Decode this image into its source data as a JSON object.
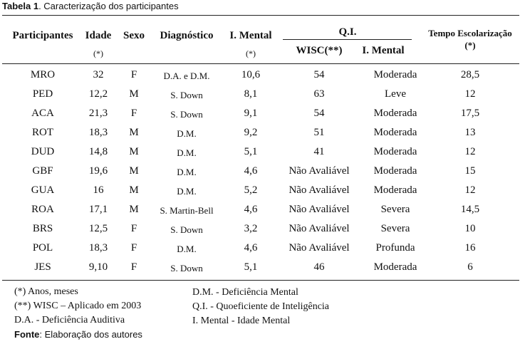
{
  "caption": {
    "label": "Tabela 1",
    "text": ". Caracterização dos participantes"
  },
  "table": {
    "headers": [
      {
        "label": "Participantes"
      },
      {
        "label": "Idade",
        "note": "(*)"
      },
      {
        "label": "Sexo"
      },
      {
        "label": "Diagnóstico"
      },
      {
        "label": "I. Mental",
        "note": "(*)"
      },
      {
        "label": "Q.I.",
        "subheaders": [
          "WISC(**)",
          "I. Mental"
        ]
      },
      {
        "label": "Tempo Escolarização (*)"
      }
    ],
    "rows": [
      [
        "MRO",
        "32",
        "F",
        "D.A. e D.M.",
        "10,6",
        "54",
        "Moderada",
        "28,5"
      ],
      [
        "PED",
        "12,2",
        "M",
        "S. Down",
        "8,1",
        "63",
        "Leve",
        "12"
      ],
      [
        "ACA",
        "21,3",
        "F",
        "S. Down",
        "9,1",
        "54",
        "Moderada",
        "17,5"
      ],
      [
        "ROT",
        "18,3",
        "M",
        "D.M.",
        "9,2",
        "51",
        "Moderada",
        "13"
      ],
      [
        "DUD",
        "14,8",
        "M",
        "D.M.",
        "5,1",
        "41",
        "Moderada",
        "12"
      ],
      [
        "GBF",
        "19,6",
        "M",
        "D.M.",
        "4,6",
        "Não Avaliável",
        "Moderada",
        "15"
      ],
      [
        "GUA",
        "16",
        "M",
        "D.M.",
        "5,2",
        "Não Avaliável",
        "Moderada",
        "12"
      ],
      [
        "ROA",
        "17,1",
        "M",
        "S. Martin-Bell",
        "4,6",
        "Não Avaliável",
        "Severa",
        "14,5"
      ],
      [
        "BRS",
        "12,5",
        "F",
        "S. Down",
        "3,2",
        "Não Avaliável",
        "Severa",
        "10"
      ],
      [
        "POL",
        "18,3",
        "F",
        "D.M.",
        "4,6",
        "Não Avaliável",
        "Profunda",
        "16"
      ],
      [
        "JES",
        "9,10",
        "F",
        "S. Down",
        "5,1",
        "46",
        "Moderada",
        "6"
      ]
    ]
  },
  "notes": {
    "left": [
      "(*) Anos, meses",
      "(**) WISC – Aplicado em 2003",
      "D.A. - Deficiência Auditiva"
    ],
    "right": [
      "D.M. - Deficiência Mental",
      "Q.I. - Quoeficiente de Inteligência",
      "I. Mental - Idade Mental"
    ]
  },
  "source": {
    "label": "Fonte",
    "text": ": Elaboração dos autores"
  }
}
